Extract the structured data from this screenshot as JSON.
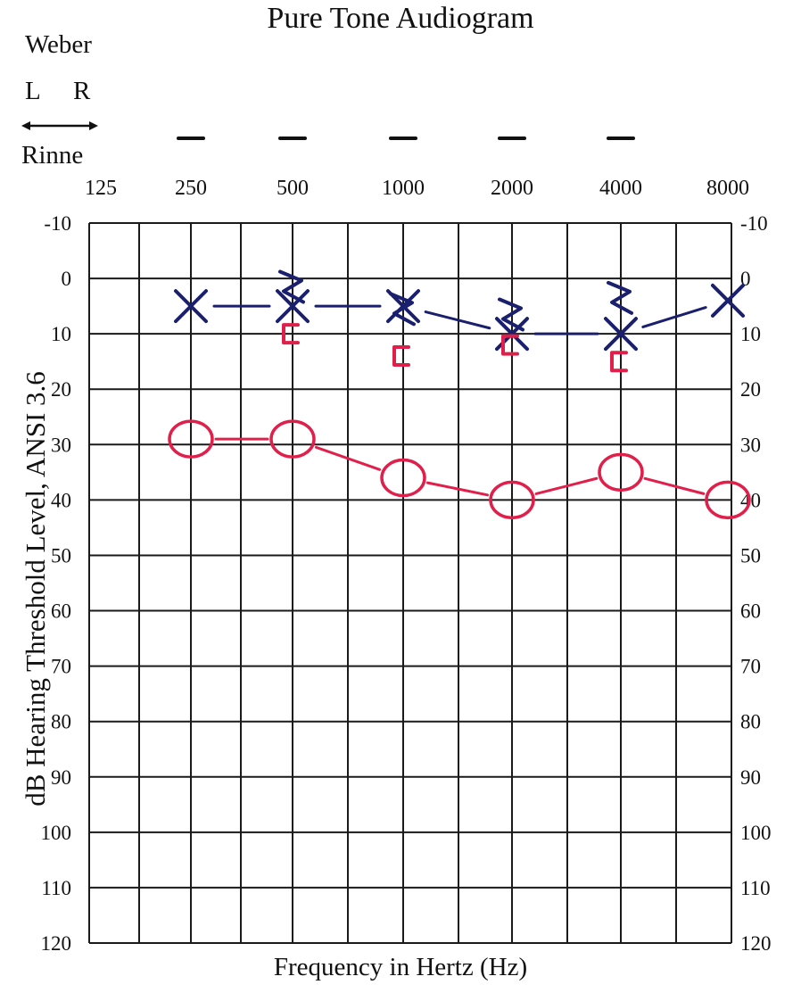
{
  "chart_data": {
    "type": "line",
    "title": "Pure Tone Audiogram",
    "xlabel": "Frequency in Hertz (Hz)",
    "ylabel": "dB Hearing Threshold Level, ANSI 3.6",
    "x_categories": [
      "125",
      "250",
      "500",
      "1000",
      "2000",
      "4000",
      "8000"
    ],
    "y_ticks": [
      "-10",
      "0",
      "10",
      "20",
      "30",
      "40",
      "50",
      "60",
      "70",
      "80",
      "90",
      "100",
      "110",
      "120"
    ],
    "ylim": [
      -10,
      120
    ],
    "y_inverted": true,
    "grid": true,
    "weber": {
      "label": "Weber",
      "left": "L",
      "right": "R",
      "marks": [
        "250",
        "500",
        "1000",
        "2000",
        "4000"
      ]
    },
    "rinne": {
      "label": "Rinne"
    },
    "series": [
      {
        "symbol": "O",
        "color": "#e0204a",
        "x": [
          "250",
          "500",
          "1000",
          "2000",
          "4000",
          "8000"
        ],
        "y": [
          29,
          29,
          36,
          40,
          35,
          40
        ]
      },
      {
        "symbol": "X",
        "color": "#1a1f6e",
        "x": [
          "250",
          "500",
          "1000",
          "2000",
          "4000",
          "8000"
        ],
        "y": [
          5,
          5,
          5,
          10,
          10,
          4
        ]
      },
      {
        "symbol": ">",
        "color": "#1a1f6e",
        "x": [
          "500",
          "1000",
          "2000",
          "4000"
        ],
        "y": [
          2,
          6,
          7,
          4
        ]
      },
      {
        "symbol": "[",
        "color": "#e0204a",
        "x": [
          "500",
          "1000",
          "2000",
          "4000"
        ],
        "y": [
          10,
          14,
          12,
          15
        ]
      }
    ]
  }
}
